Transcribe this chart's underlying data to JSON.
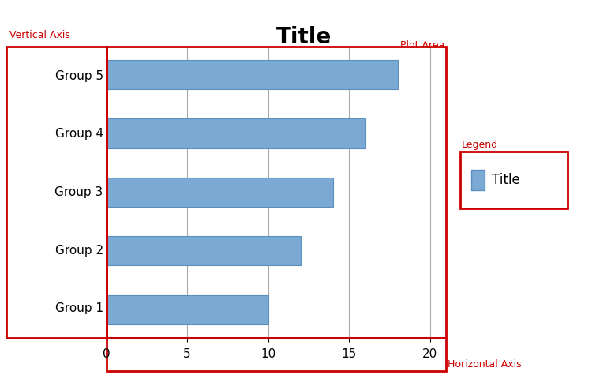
{
  "title": "Title",
  "title_fontsize": 20,
  "title_fontweight": "bold",
  "categories": [
    "Group 1",
    "Group 2",
    "Group 3",
    "Group 4",
    "Group 5"
  ],
  "values": [
    10,
    12,
    14,
    16,
    18
  ],
  "bar_color": "#7aaad4",
  "bar_edgecolor": "#5a8fbf",
  "xlim": [
    0,
    21
  ],
  "xticks": [
    0,
    5,
    10,
    15,
    20
  ],
  "background_color": "#ffffff",
  "plot_bg_color": "#ffffff",
  "grid_color": "#aaaaaa",
  "label_fontsize": 11,
  "tick_fontsize": 11,
  "vertical_axis_label": "Vertical Axis",
  "horizontal_axis_label": "Horizontal Axis",
  "plot_area_label": "Plot Area",
  "legend_label": "Legend",
  "legend_series_label": "Title",
  "red_color": "#cc0000",
  "annotation_fontsize": 9,
  "bar_height": 0.5
}
